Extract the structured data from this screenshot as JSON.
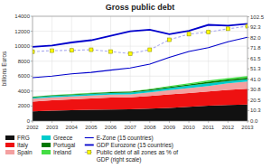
{
  "chart_data": {
    "type": "area",
    "title": "Gross public debt",
    "y_label": "billions Euros",
    "stacked": true,
    "grid": true,
    "legend": "bottom",
    "x": [
      2002,
      2003,
      2004,
      2005,
      2006,
      2007,
      2008,
      2009,
      2010,
      2011,
      2012,
      2013
    ],
    "xlim": [
      2002,
      2013
    ],
    "xticks": [
      2002,
      2003,
      2004,
      2005,
      2006,
      2007,
      2008,
      2009,
      2010,
      2011,
      2012,
      2013
    ],
    "ylim": [
      0,
      14000
    ],
    "yticks": [
      0,
      2000,
      4000,
      6000,
      8000,
      10000,
      12000,
      14000
    ],
    "y2lim": [
      0,
      103.0
    ],
    "y2ticks": [
      {
        "value": 0.0,
        "label": "0.0"
      },
      10.3,
      20.5,
      30.8,
      {
        "value": 41.0,
        "label": "41.0"
      },
      51.3,
      61.5,
      71.8,
      {
        "value": 82.0,
        "label": "82.0"
      },
      92.3,
      102.5
    ],
    "series": [
      {
        "name": "FRG",
        "type": "area",
        "color": "#111111",
        "values": [
          1300,
          1400,
          1450,
          1500,
          1550,
          1580,
          1650,
          1750,
          1900,
          2050,
          2150,
          2200
        ]
      },
      {
        "name": "Italy",
        "type": "area",
        "color": "#ee1111",
        "values": [
          1300,
          1380,
          1450,
          1520,
          1590,
          1600,
          1700,
          1800,
          1850,
          1900,
          2000,
          2100
        ]
      },
      {
        "name": "Spain",
        "type": "area",
        "color": "#f4a0a0",
        "values": [
          380,
          390,
          390,
          400,
          390,
          380,
          470,
          570,
          650,
          740,
          890,
          970
        ]
      },
      {
        "name": "Greece",
        "type": "area",
        "color": "#00cccc",
        "values": [
          160,
          168,
          183,
          200,
          215,
          240,
          265,
          298,
          328,
          356,
          305,
          320
        ]
      },
      {
        "name": "Portugal",
        "type": "area",
        "color": "#007700",
        "values": [
          90,
          96,
          100,
          106,
          110,
          120,
          130,
          150,
          172,
          195,
          205,
          215
        ]
      },
      {
        "name": "Ireland",
        "type": "area",
        "color": "#44dd44",
        "values": [
          40,
          42,
          44,
          46,
          44,
          47,
          80,
          105,
          148,
          175,
          190,
          205
        ]
      },
      {
        "name": "E-Zone (15 countries)",
        "type": "line",
        "color": "#0000cc",
        "values": [
          5800,
          6000,
          6300,
          6500,
          6800,
          7100,
          7600,
          8500,
          9300,
          9800,
          10600,
          11200
        ]
      },
      {
        "name": "GDP Eurozone (15 countries)",
        "type": "line",
        "color": "#0000cc",
        "values": [
          9900,
          10100,
          10500,
          10800,
          11400,
          12000,
          12200,
          11600,
          12050,
          12850,
          12750,
          13000
        ]
      },
      {
        "name": "Public debt of all zones as % of\nGDP (right scale)",
        "type": "line",
        "axis": "y2",
        "color": "#aaaaee",
        "marker": "square",
        "line_style": "dashed",
        "values": [
          68.2,
          69.2,
          69.5,
          70.1,
          68.3,
          66.3,
          70.1,
          79.9,
          85.4,
          87.5,
          90.7,
          93.2
        ]
      }
    ]
  }
}
